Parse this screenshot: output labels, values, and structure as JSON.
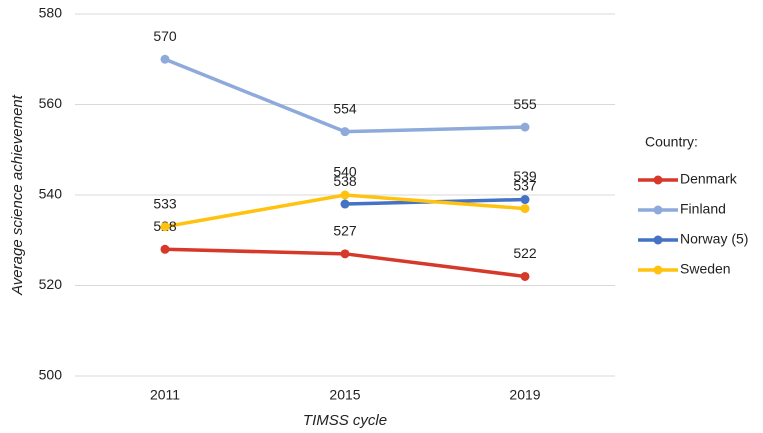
{
  "chart_data": {
    "type": "line",
    "y_label": "Average science achievement",
    "x_label": "TIMSS cycle",
    "legend_title": "Country:",
    "legend": "right",
    "grid": true,
    "categories": [
      "2011",
      "2015",
      "2019"
    ],
    "ylim": [
      500,
      580
    ],
    "yticks": [
      500,
      520,
      540,
      560,
      580
    ],
    "series": [
      {
        "name": "Denmark",
        "color": "#d6392a",
        "values": [
          528,
          527,
          522
        ]
      },
      {
        "name": "Finland",
        "color": "#8eaadb",
        "values": [
          570,
          554,
          555
        ]
      },
      {
        "name": "Norway (5)",
        "color": "#4472c4",
        "values": [
          null,
          538,
          539
        ]
      },
      {
        "name": "Sweden",
        "color": "#ffc20e",
        "values": [
          533,
          540,
          537
        ]
      }
    ]
  }
}
